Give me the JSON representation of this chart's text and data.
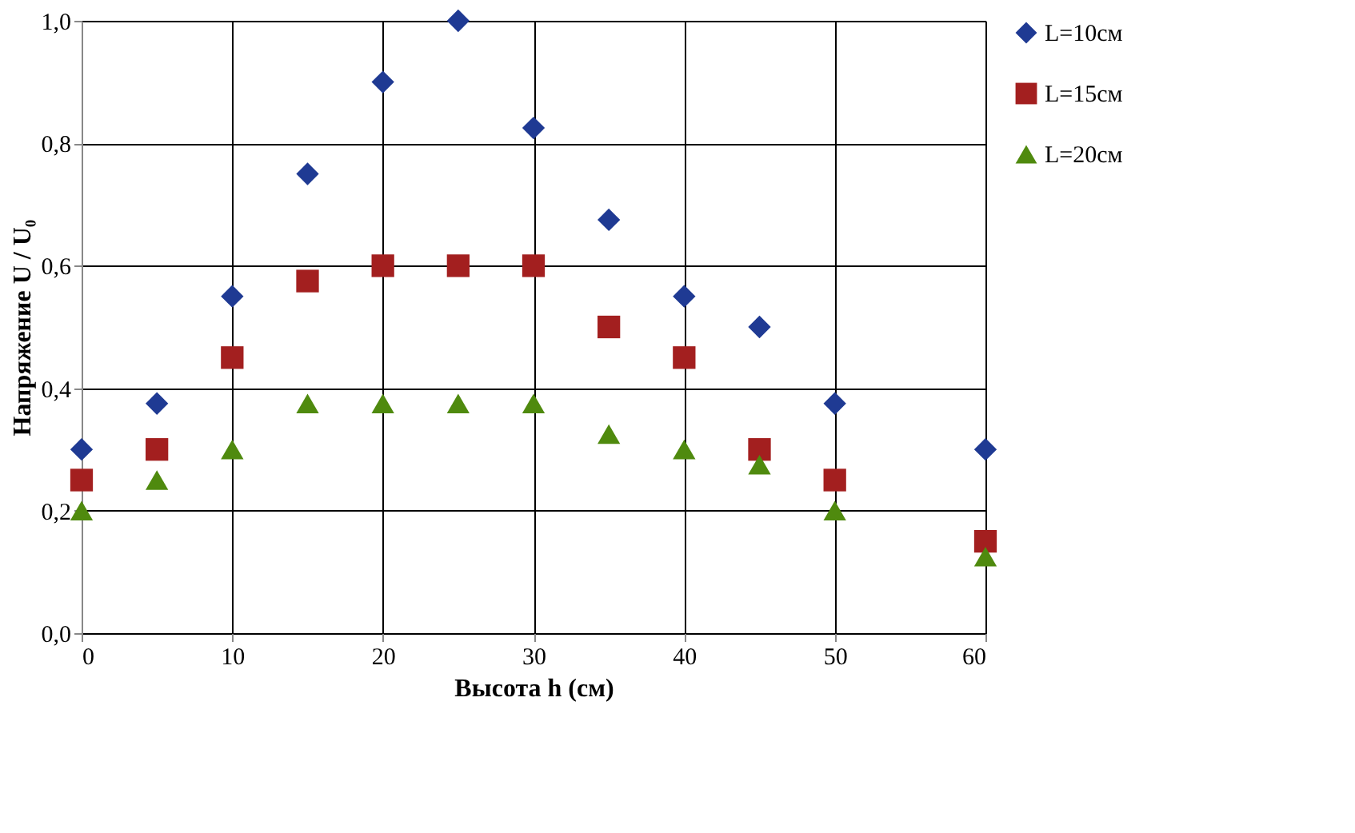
{
  "chart_data": {
    "type": "scatter",
    "xlabel": "Высота h (см)",
    "ylabel": "Напряжение U / U₀",
    "x": [
      0,
      5,
      10,
      15,
      20,
      25,
      30,
      35,
      40,
      45,
      50,
      60
    ],
    "series": [
      {
        "name": "L=10см",
        "color": "#1f3a93",
        "marker": "diamond",
        "values": [
          0.3,
          0.375,
          0.55,
          0.75,
          0.9,
          1.0,
          0.825,
          0.675,
          0.55,
          0.5,
          0.375,
          0.3
        ]
      },
      {
        "name": "L=15см",
        "color": "#a31f1f",
        "marker": "square",
        "values": [
          0.25,
          0.3,
          0.45,
          0.575,
          0.6,
          0.6,
          0.6,
          0.5,
          0.45,
          0.3,
          0.25,
          0.15
        ]
      },
      {
        "name": "L=20см",
        "color": "#4f8a0e",
        "marker": "triangle",
        "values": [
          0.2,
          0.25,
          0.3,
          0.375,
          0.375,
          0.375,
          0.375,
          0.325,
          0.3,
          0.275,
          0.2,
          0.125
        ]
      }
    ],
    "xlim": [
      0,
      60
    ],
    "xticks": [
      0,
      10,
      20,
      30,
      40,
      50,
      60
    ],
    "ylim": [
      0,
      1
    ],
    "yticks": [
      {
        "value": 0,
        "label": "0,0"
      },
      {
        "value": 0.2,
        "label": "0,2"
      },
      {
        "value": 0.4,
        "label": "0,4"
      },
      {
        "value": 0.6,
        "label": "0,6"
      },
      {
        "value": 0.8,
        "label": "0,8"
      },
      {
        "value": 1.0,
        "label": "1,0"
      }
    ],
    "grid": true,
    "legend": "right"
  }
}
